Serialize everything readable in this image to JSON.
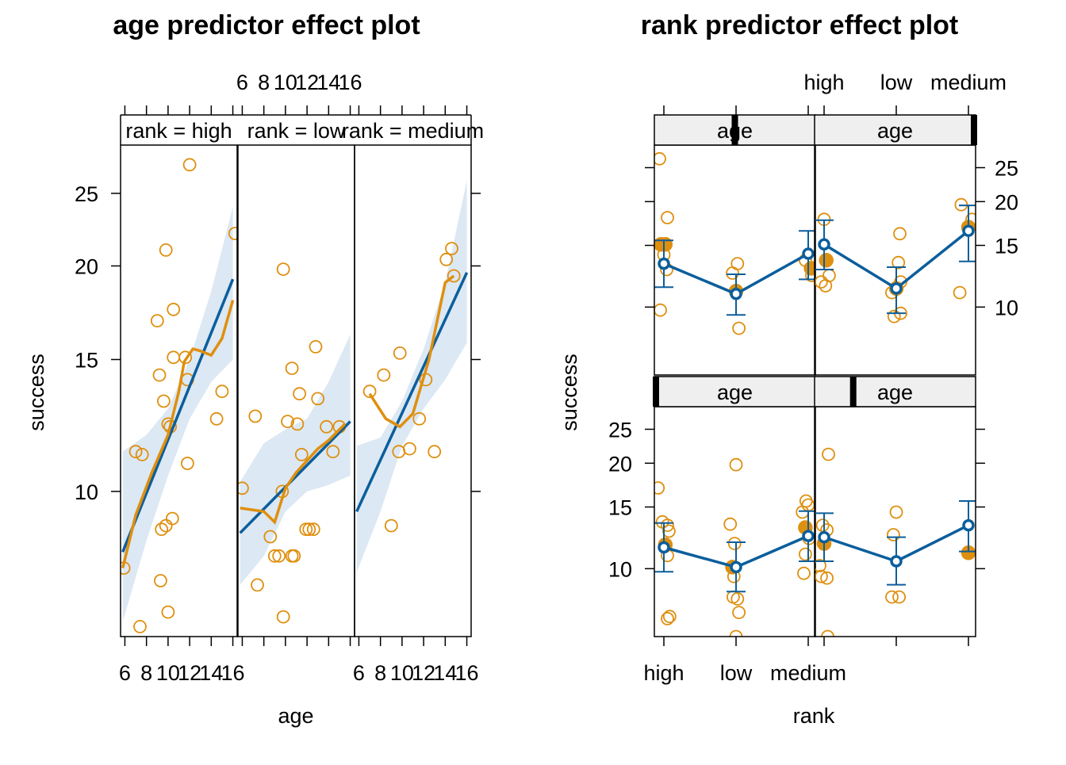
{
  "colors": {
    "fit": "#0b5e9c",
    "points": "#df8f0f",
    "band": "#dce8f3",
    "strip": "#efefef"
  },
  "chart_data": [
    {
      "type": "line",
      "title": "age predictor effect plot",
      "xlabel": "age",
      "ylabel": "success",
      "y_scale": "log",
      "ylim": [
        6.4,
        29
      ],
      "yticks": [
        10,
        15,
        20,
        25
      ],
      "xlim": [
        5.6,
        16.4
      ],
      "xticks": [
        6,
        8,
        10,
        12,
        14,
        16
      ],
      "xtick_labels": [
        "6",
        "8",
        "10",
        "12",
        "14",
        "16"
      ],
      "panels": [
        {
          "label": "rank = high",
          "fit": [
            [
              5.8,
              8.3
            ],
            [
              16,
              19.2
            ]
          ],
          "ci_lower": [
            [
              5.8,
              6.7
            ],
            [
              8,
              8.6
            ],
            [
              10,
              10.5
            ],
            [
              12,
              12.5
            ],
            [
              14,
              14.0
            ],
            [
              16,
              15.0
            ]
          ],
          "ci_upper": [
            [
              5.8,
              11.3
            ],
            [
              8,
              11.9
            ],
            [
              10,
              12.9
            ],
            [
              12,
              15.0
            ],
            [
              14,
              18.5
            ],
            [
              16,
              24.0
            ]
          ],
          "smooth": [
            [
              5.8,
              7.9
            ],
            [
              7,
              9.3
            ],
            [
              8.5,
              10.6
            ],
            [
              10,
              11.9
            ],
            [
              11,
              13.6
            ],
            [
              11.5,
              14.9
            ],
            [
              12.3,
              15.5
            ],
            [
              13,
              15.4
            ],
            [
              14,
              15.2
            ],
            [
              15,
              16.0
            ],
            [
              16,
              18.0
            ]
          ],
          "points": [
            [
              5.9,
              7.9
            ],
            [
              7.0,
              11.3
            ],
            [
              7.6,
              11.2
            ],
            [
              9.0,
              16.9
            ],
            [
              9.2,
              14.3
            ],
            [
              9.6,
              13.2
            ],
            [
              9.8,
              21.0
            ],
            [
              10.0,
              12.3
            ],
            [
              10.2,
              12.2
            ],
            [
              10.5,
              17.5
            ],
            [
              10.5,
              15.1
            ],
            [
              9.4,
              8.9
            ],
            [
              9.8,
              9.0
            ],
            [
              10.4,
              9.2
            ],
            [
              9.3,
              7.6
            ],
            [
              10.0,
              6.9
            ],
            [
              7.4,
              6.6
            ],
            [
              11.6,
              15.1
            ],
            [
              11.8,
              14.1
            ],
            [
              11.8,
              10.9
            ],
            [
              12.0,
              27.3
            ],
            [
              14.5,
              12.5
            ],
            [
              15.0,
              13.6
            ],
            [
              16.2,
              22.1
            ]
          ]
        },
        {
          "label": "rank = low",
          "fit": [
            [
              5.8,
              8.8
            ],
            [
              16,
              12.4
            ]
          ],
          "ci_lower": [
            [
              5.8,
              7.5
            ],
            [
              8,
              8.2
            ],
            [
              10,
              9.4
            ],
            [
              12,
              10.0
            ],
            [
              14,
              10.2
            ],
            [
              16,
              10.5
            ]
          ],
          "ci_upper": [
            [
              5.8,
              10.3
            ],
            [
              8,
              11.6
            ],
            [
              10,
              12.1
            ],
            [
              12,
              12.5
            ],
            [
              14,
              14.0
            ],
            [
              16,
              16.2
            ]
          ],
          "smooth": [
            [
              5.8,
              9.5
            ],
            [
              8,
              9.4
            ],
            [
              9,
              9.1
            ],
            [
              10,
              10.1
            ],
            [
              11,
              10.6
            ],
            [
              13,
              11.4
            ],
            [
              14,
              11.7
            ],
            [
              15.5,
              12.3
            ]
          ],
          "points": [
            [
              6.0,
              10.1
            ],
            [
              7.2,
              12.6
            ],
            [
              7.4,
              7.5
            ],
            [
              8.6,
              8.7
            ],
            [
              9.0,
              8.2
            ],
            [
              9.4,
              8.2
            ],
            [
              9.7,
              10.0
            ],
            [
              9.8,
              19.8
            ],
            [
              10.2,
              12.4
            ],
            [
              10.6,
              8.2
            ],
            [
              10.8,
              8.2
            ],
            [
              10.6,
              14.6
            ],
            [
              11.1,
              12.3
            ],
            [
              11.3,
              13.5
            ],
            [
              11.5,
              11.2
            ],
            [
              11.9,
              8.9
            ],
            [
              12.2,
              8.9
            ],
            [
              12.6,
              8.9
            ],
            [
              12.8,
              15.6
            ],
            [
              13.0,
              13.3
            ],
            [
              13.8,
              12.2
            ],
            [
              14.4,
              11.3
            ],
            [
              15.0,
              12.2
            ],
            [
              9.8,
              6.8
            ]
          ]
        },
        {
          "label": "rank = medium",
          "fit": [
            [
              5.8,
              9.4
            ],
            [
              16,
              19.6
            ]
          ],
          "ci_lower": [
            [
              5.8,
              7.8
            ],
            [
              8,
              9.4
            ],
            [
              10,
              11.5
            ],
            [
              12,
              12.9
            ],
            [
              14,
              14.1
            ],
            [
              16,
              15.8
            ]
          ],
          "ci_upper": [
            [
              5.8,
              11.5
            ],
            [
              8,
              11.8
            ],
            [
              10,
              13.2
            ],
            [
              12,
              15.5
            ],
            [
              14,
              19.0
            ],
            [
              16,
              26.0
            ]
          ],
          "smooth": [
            [
              7,
              13.5
            ],
            [
              8.5,
              12.5
            ],
            [
              9.8,
              12.2
            ],
            [
              11,
              12.7
            ],
            [
              12.5,
              15.0
            ],
            [
              14,
              19.0
            ],
            [
              14.8,
              19.4
            ]
          ],
          "points": [
            [
              7.0,
              13.6
            ],
            [
              8.3,
              14.3
            ],
            [
              9.0,
              9.0
            ],
            [
              9.7,
              11.3
            ],
            [
              9.8,
              15.3
            ],
            [
              10.7,
              11.4
            ],
            [
              11.6,
              12.5
            ],
            [
              12.2,
              14.1
            ],
            [
              13.0,
              11.3
            ],
            [
              14.1,
              20.4
            ],
            [
              14.6,
              21.1
            ],
            [
              14.8,
              19.4
            ]
          ]
        }
      ]
    },
    {
      "type": "line",
      "title": "rank predictor effect plot",
      "xlabel": "rank",
      "ylabel": "success",
      "y_scale": "log",
      "ylim": [
        6.4,
        29
      ],
      "yticks": [
        10,
        15,
        20,
        25
      ],
      "categories": [
        "high",
        "low",
        "medium"
      ],
      "panels": [
        {
          "label": "age",
          "age_marker": 0.5,
          "effect": [
            13.3,
            10.9,
            14.2
          ],
          "lower": [
            11.4,
            9.5,
            12.0
          ],
          "upper": [
            15.5,
            12.4,
            16.5
          ],
          "filled": [
            [
              -0.04,
              15.1
            ],
            [
              0.02,
              15.1
            ],
            [
              1.0,
              11.1
            ],
            [
              2.04,
              12.9
            ]
          ],
          "points": [
            [
              -0.06,
              26.5
            ],
            [
              0.05,
              18.0
            ],
            [
              0.0,
              14.1
            ],
            [
              0.04,
              12.8
            ],
            [
              -0.05,
              9.8
            ],
            [
              0.95,
              12.5
            ],
            [
              1.02,
              13.3
            ],
            [
              1.04,
              8.7
            ],
            [
              1.96,
              13.6
            ],
            [
              2.05,
              12.3
            ]
          ]
        },
        {
          "label": "age",
          "age_marker": 0.99,
          "effect": [
            15.1,
            11.3,
            16.5
          ],
          "lower": [
            12.8,
            9.6,
            13.5
          ],
          "upper": [
            17.7,
            13.0,
            19.5
          ],
          "filled": [
            [
              0.03,
              13.6
            ],
            [
              1.0,
              11.3
            ],
            [
              2.0,
              16.9
            ]
          ],
          "points": [
            [
              0.0,
              17.8
            ],
            [
              0.07,
              12.3
            ],
            [
              -0.04,
              11.8
            ],
            [
              0.02,
              11.5
            ],
            [
              1.05,
              16.2
            ],
            [
              1.03,
              13.4
            ],
            [
              1.06,
              11.8
            ],
            [
              0.94,
              11.0
            ],
            [
              0.97,
              9.4
            ],
            [
              1.06,
              9.6
            ],
            [
              1.9,
              19.6
            ],
            [
              2.05,
              17.8
            ],
            [
              1.88,
              11.0
            ]
          ]
        },
        {
          "label": "age",
          "age_marker": 0.01,
          "effect": [
            11.5,
            10.1,
            12.4
          ],
          "lower": [
            9.8,
            8.6,
            10.5
          ],
          "upper": [
            13.5,
            11.9,
            14.6
          ],
          "filled": [
            [
              0.02,
              11.7
            ],
            [
              0.95,
              10.1
            ],
            [
              1.96,
              13.1
            ]
          ],
          "points": [
            [
              -0.08,
              17.0
            ],
            [
              -0.02,
              13.6
            ],
            [
              0.05,
              13.3
            ],
            [
              0.07,
              12.8
            ],
            [
              0.02,
              11.6
            ],
            [
              0.05,
              10.9
            ],
            [
              0.05,
              7.2
            ],
            [
              0.08,
              7.3
            ],
            [
              0.92,
              13.4
            ],
            [
              0.98,
              11.8
            ],
            [
              0.97,
              9.5
            ],
            [
              0.96,
              8.3
            ],
            [
              1.02,
              8.2
            ],
            [
              1.04,
              7.5
            ],
            [
              1.0,
              6.4
            ],
            [
              1.0,
              19.8
            ],
            [
              1.97,
              15.6
            ],
            [
              2.0,
              15.2
            ],
            [
              1.92,
              14.5
            ],
            [
              2.01,
              12.2
            ],
            [
              1.96,
              11.0
            ],
            [
              1.94,
              9.7
            ]
          ]
        },
        {
          "label": "age",
          "age_marker": 0.24,
          "effect": [
            12.3,
            10.5,
            13.3
          ],
          "lower": [
            10.5,
            9.0,
            11.2
          ],
          "upper": [
            14.4,
            12.3,
            15.6
          ],
          "filled": [
            [
              0.0,
              11.8
            ],
            [
              2.0,
              11.1
            ]
          ],
          "points": [
            [
              -0.02,
              13.3
            ],
            [
              0.04,
              12.9
            ],
            [
              0.06,
              21.2
            ],
            [
              -0.06,
              10.2
            ],
            [
              0.04,
              9.4
            ],
            [
              0.05,
              6.4
            ],
            [
              -0.04,
              9.5
            ],
            [
              0.96,
              12.5
            ],
            [
              1.0,
              14.5
            ],
            [
              0.94,
              8.3
            ],
            [
              1.04,
              8.3
            ]
          ]
        }
      ]
    }
  ]
}
